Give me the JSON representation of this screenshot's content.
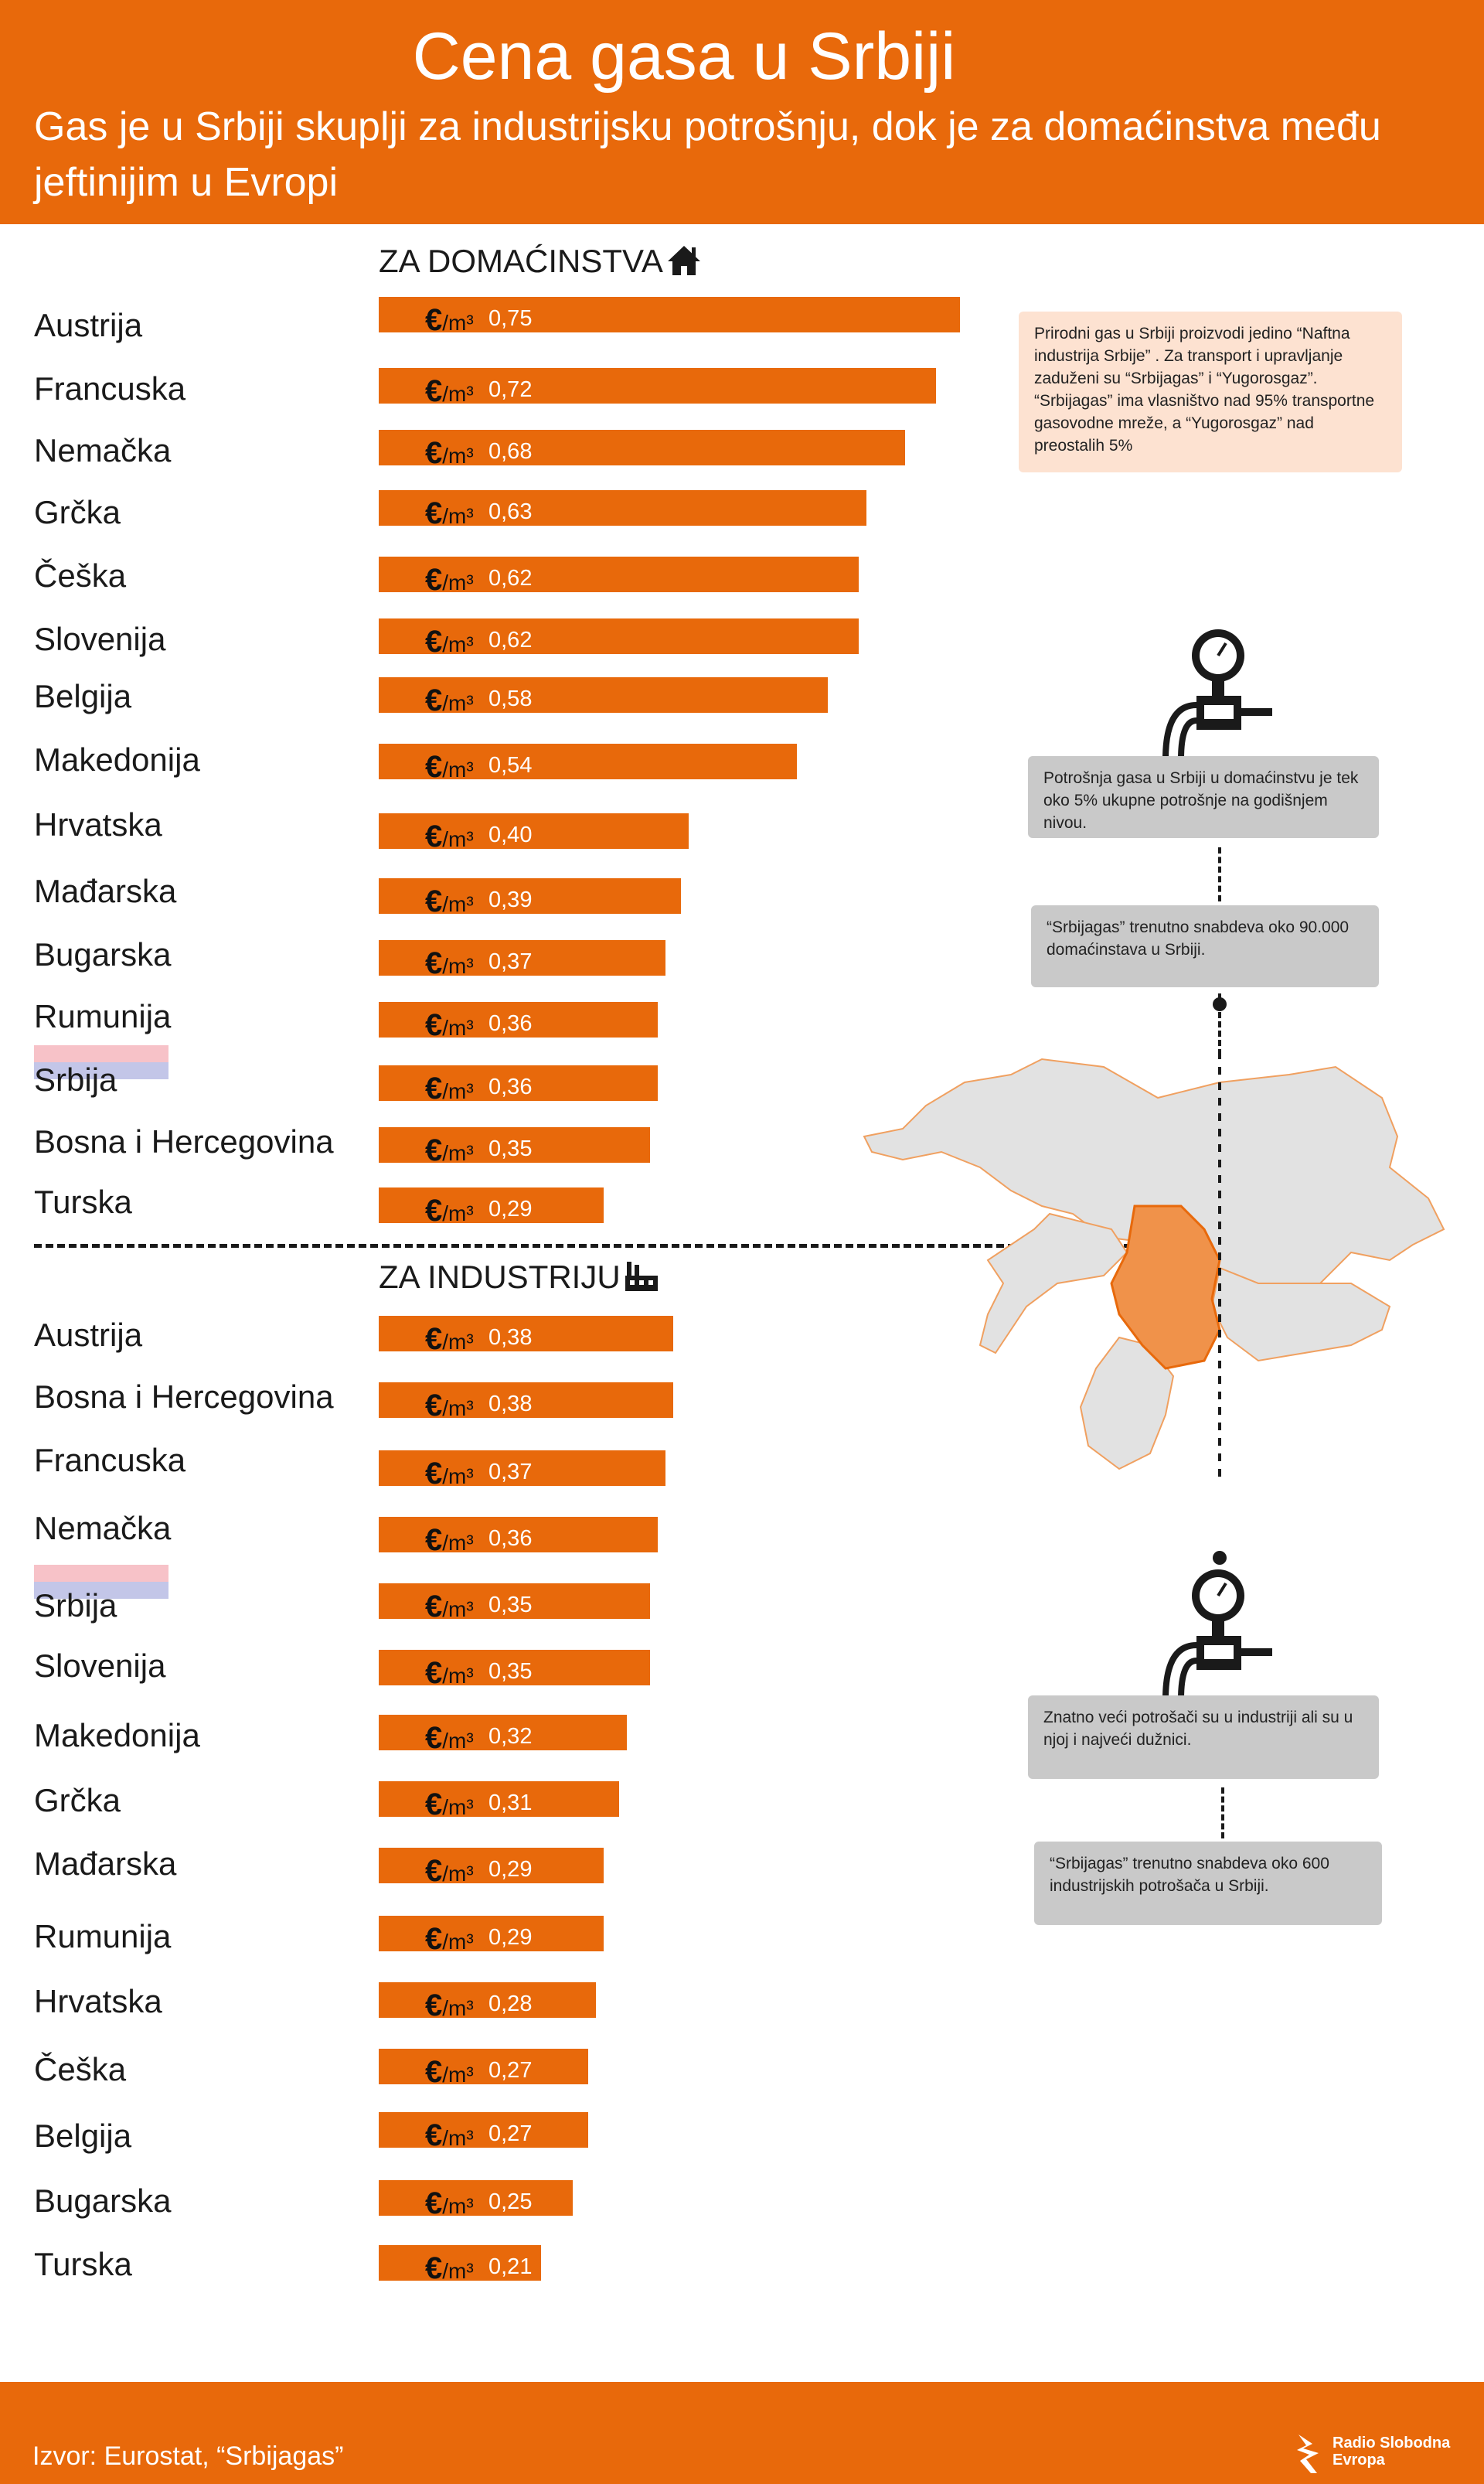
{
  "header": {
    "title": "Cena gasa u Srbiji",
    "subtitle": "Gas je u Srbiji skuplji za industrijsku potrošnju, dok je za domaćinstva među jeftinijim u Evropi"
  },
  "unit_symbol": "€",
  "unit_suffix": "/m³",
  "chart_data": [
    {
      "type": "bar",
      "orientation": "horizontal",
      "title": "ZA DOMAĆINSTVA",
      "unit": "€/m³",
      "xlim": [
        0,
        0.75
      ],
      "categories": [
        "Austrija",
        "Francuska",
        "Nemačka",
        "Grčka",
        "Češka",
        "Slovenija",
        "Belgija",
        "Makedonija",
        "Hrvatska",
        "Mađarska",
        "Bugarska",
        "Rumunija",
        "Srbija",
        "Bosna i Hercegovina",
        "Turska"
      ],
      "values": [
        0.75,
        0.72,
        0.68,
        0.63,
        0.62,
        0.62,
        0.58,
        0.54,
        0.4,
        0.39,
        0.37,
        0.36,
        0.36,
        0.35,
        0.29
      ],
      "labels": [
        "0,75",
        "0,72",
        "0,68",
        "0,63",
        "0,62",
        "0,62",
        "0,58",
        "0,54",
        "0,40",
        "0,39",
        "0,37",
        "0,36",
        "0,36",
        "0,35",
        "0,29"
      ]
    },
    {
      "type": "bar",
      "orientation": "horizontal",
      "title": "ZA INDUSTRIJU",
      "unit": "€/m³",
      "xlim": [
        0,
        0.75
      ],
      "categories": [
        "Austrija",
        "Bosna i Hercegovina",
        "Francuska",
        "Nemačka",
        "Srbija",
        "Slovenija",
        "Makedonija",
        "Grčka",
        "Mađarska",
        "Rumunija",
        "Hrvatska",
        "Češka",
        "Belgija",
        "Bugarska",
        "Turska"
      ],
      "values": [
        0.38,
        0.38,
        0.37,
        0.36,
        0.35,
        0.35,
        0.32,
        0.31,
        0.29,
        0.29,
        0.28,
        0.27,
        0.27,
        0.25,
        0.21
      ],
      "labels": [
        "0,38",
        "0,38",
        "0,37",
        "0,36",
        "0,35",
        "0,35",
        "0,32",
        "0,31",
        "0,29",
        "0,29",
        "0,28",
        "0,27",
        "0,27",
        "0,25",
        "0,21"
      ]
    }
  ],
  "notes": {
    "production": "Prirodni gas u Srbiji proizvodi jedino “Naftna industrija Srbije” . Za transport i upravljanje zaduženi su “Srbijagas” i “Yugorosgaz”. “Srbijagas” ima vlasništvo nad 95% transportne gasovodne mreže, a “Yugorosgaz” nad preostalih 5%",
    "household_share": "Potrošnja gasa u Srbiji u domaćinstvu je tek oko 5% ukupne potrošnje na godišnjem nivou.",
    "household_count": "“Srbijagas” trenutno snabdeva oko 90.000 domaćinstava u Srbiji.",
    "industry_debtors": "Znatno veći potrošači su u industriji ali su u njoj i najveći dužnici.",
    "industry_count": "“Srbijagas” trenutno snabdeva oko 600 industrijskih potrošača u Srbiji."
  },
  "colors": {
    "accent": "#e8690b",
    "serbia_map": "#f0924a",
    "map_land": "#e2e2e2",
    "note_peach": "#fde2d1",
    "note_gray": "#c9c9c9",
    "flag_red": "#f7c2c8",
    "flag_blue": "#c3c6e8"
  },
  "footer": {
    "source": "Izvor: Eurostat, “Srbijagas”",
    "logo_line1": "Radio Slobodna",
    "logo_line2": "Evropa"
  }
}
